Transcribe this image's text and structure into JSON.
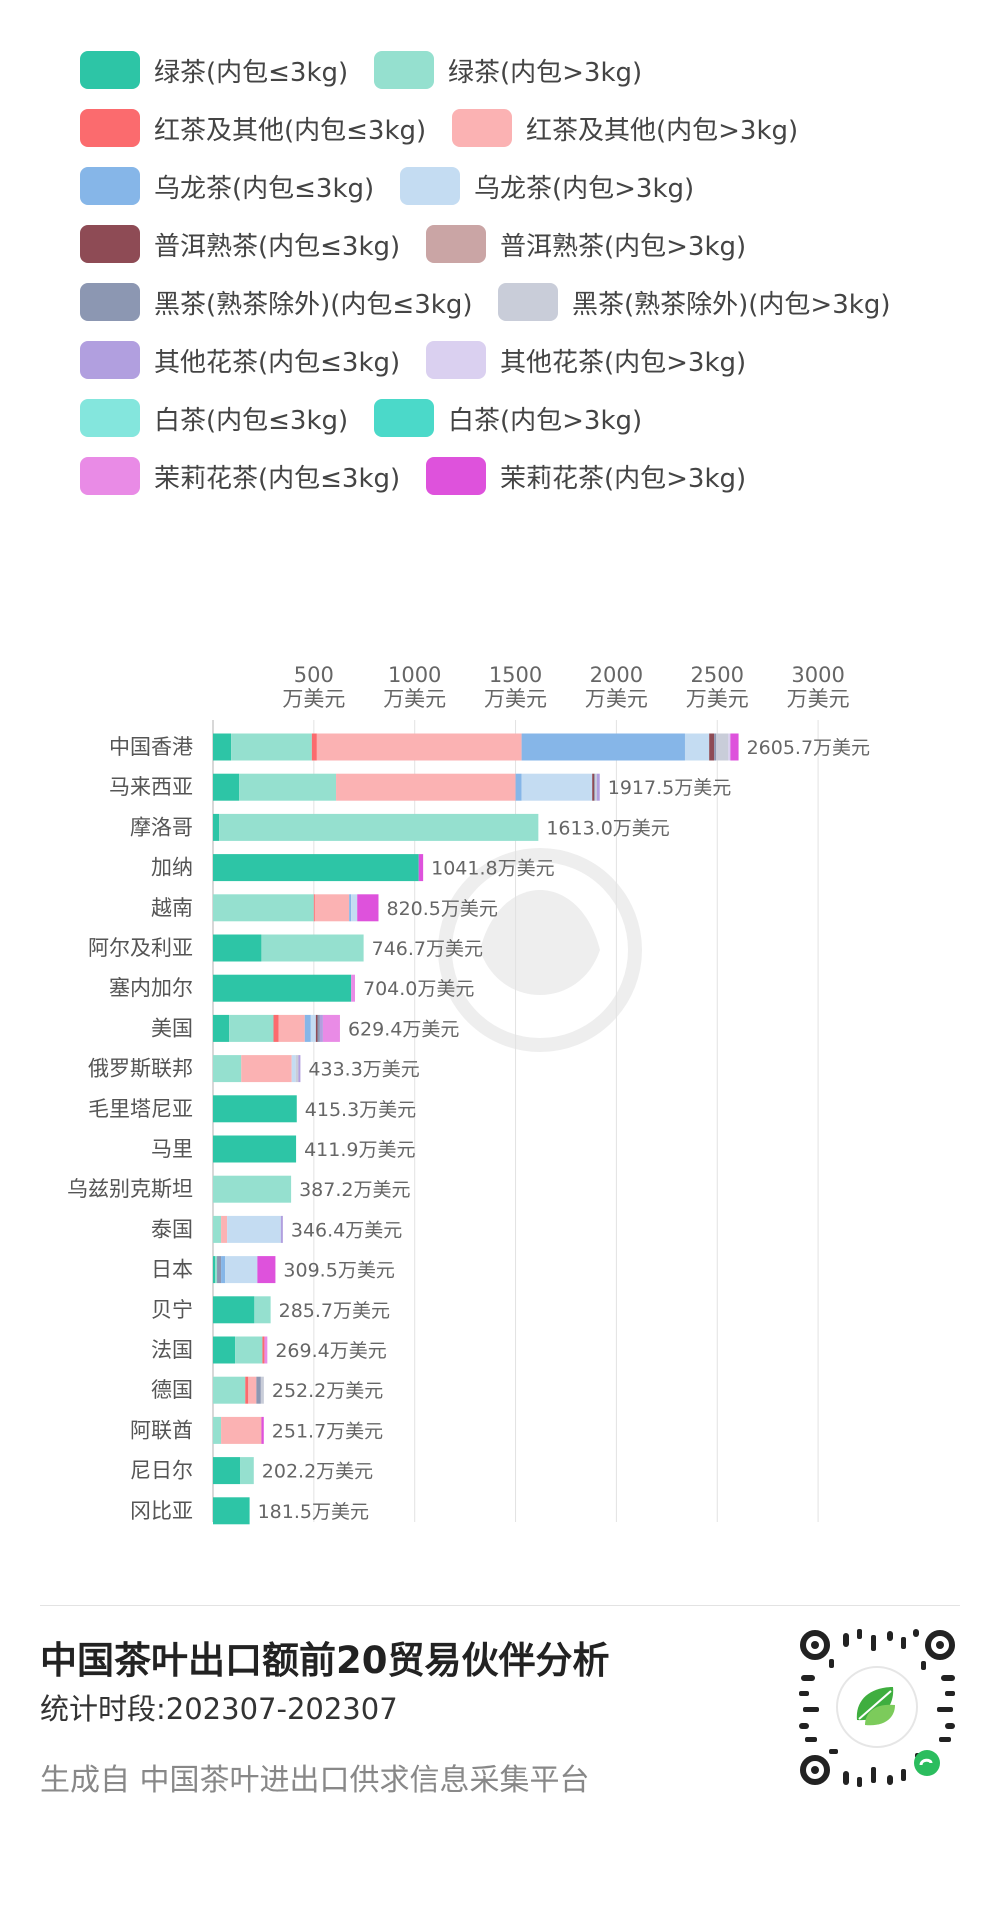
{
  "chart_data": {
    "type": "bar",
    "orientation": "horizontal",
    "stacked": true,
    "x_ticks": [
      {
        "value": 500,
        "label": [
          "500",
          "万美元"
        ]
      },
      {
        "value": 1000,
        "label": [
          "1000",
          "万美元"
        ]
      },
      {
        "value": 1500,
        "label": [
          "1500",
          "万美元"
        ]
      },
      {
        "value": 2000,
        "label": [
          "2000",
          "万美元"
        ]
      },
      {
        "value": 2500,
        "label": [
          "2500",
          "万美元"
        ]
      },
      {
        "value": 3000,
        "label": [
          "3000",
          "万美元"
        ]
      }
    ],
    "xlim": [
      0,
      3000
    ],
    "grid": true,
    "legend_position": "top",
    "series": [
      {
        "name": "绿茶(内包≤3kg)",
        "color": "#2dc5a6"
      },
      {
        "name": "绿茶(内包>3kg)",
        "color": "#95e0cf"
      },
      {
        "name": "红茶及其他(内包≤3kg)",
        "color": "#fb6b6e"
      },
      {
        "name": "红茶及其他(内包>3kg)",
        "color": "#fbb2b3"
      },
      {
        "name": "乌龙茶(内包≤3kg)",
        "color": "#86b6e8"
      },
      {
        "name": "乌龙茶(内包>3kg)",
        "color": "#c4dcf2"
      },
      {
        "name": "普洱熟茶(内包≤3kg)",
        "color": "#8e4b55"
      },
      {
        "name": "普洱熟茶(内包>3kg)",
        "color": "#caa5a5"
      },
      {
        "name": "黑茶(熟茶除外)(内包≤3kg)",
        "color": "#8c97b2"
      },
      {
        "name": "黑茶(熟茶除外)(内包>3kg)",
        "color": "#c9cdd9"
      },
      {
        "name": "其他花茶(内包≤3kg)",
        "color": "#b19fdf"
      },
      {
        "name": "其他花茶(内包>3kg)",
        "color": "#dad0f0"
      },
      {
        "name": "白茶(内包≤3kg)",
        "color": "#84e6dd"
      },
      {
        "name": "白茶(内包>3kg)",
        "color": "#4bd9c9"
      },
      {
        "name": "茉莉花茶(内包≤3kg)",
        "color": "#e98be6"
      },
      {
        "name": "茉莉花茶(内包>3kg)",
        "color": "#de52dc"
      }
    ],
    "categories": [
      {
        "name": "中国香港",
        "total": 2605.7,
        "total_label": "2605.7万美元",
        "segments": [
          [
            0,
            90
          ],
          [
            1,
            400
          ],
          [
            2,
            25
          ],
          [
            3,
            1015
          ],
          [
            4,
            810
          ],
          [
            5,
            120
          ],
          [
            6,
            25
          ],
          [
            8,
            10
          ],
          [
            9,
            60
          ],
          [
            11,
            10
          ],
          [
            15,
            40.7
          ]
        ]
      },
      {
        "name": "马来西亚",
        "total": 1917.5,
        "total_label": "1917.5万美元",
        "segments": [
          [
            0,
            130
          ],
          [
            1,
            480
          ],
          [
            3,
            890
          ],
          [
            4,
            30
          ],
          [
            5,
            350
          ],
          [
            6,
            10
          ],
          [
            8,
            5
          ],
          [
            9,
            7.5
          ],
          [
            10,
            15
          ]
        ]
      },
      {
        "name": "摩洛哥",
        "total": 1613.0,
        "total_label": "1613.0万美元",
        "segments": [
          [
            0,
            30
          ],
          [
            1,
            1583
          ]
        ]
      },
      {
        "name": "加纳",
        "total": 1041.8,
        "total_label": "1041.8万美元",
        "segments": [
          [
            0,
            1020
          ],
          [
            15,
            21.8
          ]
        ]
      },
      {
        "name": "越南",
        "total": 820.5,
        "total_label": "820.5万美元",
        "segments": [
          [
            1,
            500
          ],
          [
            2,
            5
          ],
          [
            3,
            170
          ],
          [
            4,
            10
          ],
          [
            5,
            30
          ],
          [
            15,
            105.5
          ]
        ]
      },
      {
        "name": "阿尔及利亚",
        "total": 746.7,
        "total_label": "746.7万美元",
        "segments": [
          [
            0,
            240
          ],
          [
            1,
            506.7
          ]
        ]
      },
      {
        "name": "塞内加尔",
        "total": 704.0,
        "total_label": "704.0万美元",
        "segments": [
          [
            0,
            685
          ],
          [
            14,
            19
          ]
        ]
      },
      {
        "name": "美国",
        "total": 629.4,
        "total_label": "629.4万美元",
        "segments": [
          [
            0,
            80
          ],
          [
            1,
            220
          ],
          [
            2,
            25
          ],
          [
            3,
            130
          ],
          [
            4,
            30
          ],
          [
            5,
            25
          ],
          [
            6,
            8
          ],
          [
            8,
            12
          ],
          [
            10,
            15
          ],
          [
            14,
            84.4
          ]
        ]
      },
      {
        "name": "俄罗斯联邦",
        "total": 433.3,
        "total_label": "433.3万美元",
        "segments": [
          [
            1,
            140
          ],
          [
            3,
            250
          ],
          [
            5,
            20
          ],
          [
            9,
            13.3
          ],
          [
            10,
            10
          ]
        ]
      },
      {
        "name": "毛里塔尼亚",
        "total": 415.3,
        "total_label": "415.3万美元",
        "segments": [
          [
            0,
            415.3
          ]
        ]
      },
      {
        "name": "马里",
        "total": 411.9,
        "total_label": "411.9万美元",
        "segments": [
          [
            0,
            411.9
          ]
        ]
      },
      {
        "name": "乌兹别克斯坦",
        "total": 387.2,
        "total_label": "387.2万美元",
        "segments": [
          [
            1,
            387.2
          ]
        ]
      },
      {
        "name": "泰国",
        "total": 346.4,
        "total_label": "346.4万美元",
        "segments": [
          [
            1,
            40
          ],
          [
            3,
            30
          ],
          [
            5,
            266.4
          ],
          [
            10,
            10
          ]
        ]
      },
      {
        "name": "日本",
        "total": 309.5,
        "total_label": "309.5万美元",
        "segments": [
          [
            0,
            10
          ],
          [
            1,
            10
          ],
          [
            8,
            20
          ],
          [
            4,
            20
          ],
          [
            5,
            160
          ],
          [
            15,
            89.5
          ]
        ]
      },
      {
        "name": "贝宁",
        "total": 285.7,
        "total_label": "285.7万美元",
        "segments": [
          [
            0,
            205
          ],
          [
            1,
            80.7
          ]
        ]
      },
      {
        "name": "法国",
        "total": 269.4,
        "total_label": "269.4万美元",
        "segments": [
          [
            0,
            110
          ],
          [
            1,
            135
          ],
          [
            2,
            10
          ],
          [
            14,
            14.4
          ]
        ]
      },
      {
        "name": "德国",
        "total": 252.2,
        "total_label": "252.2万美元",
        "segments": [
          [
            1,
            160
          ],
          [
            2,
            15
          ],
          [
            3,
            40
          ],
          [
            8,
            22.2
          ],
          [
            9,
            15
          ]
        ]
      },
      {
        "name": "阿联酋",
        "total": 251.7,
        "total_label": "251.7万美元",
        "segments": [
          [
            1,
            40
          ],
          [
            3,
            200
          ],
          [
            15,
            11.7
          ]
        ]
      },
      {
        "name": "尼日尔",
        "total": 202.2,
        "total_label": "202.2万美元",
        "segments": [
          [
            0,
            135
          ],
          [
            1,
            67.2
          ]
        ]
      },
      {
        "name": "冈比亚",
        "total": 181.5,
        "total_label": "181.5万美元",
        "segments": [
          [
            0,
            181.5
          ]
        ]
      }
    ]
  },
  "footer": {
    "title": "中国茶叶出口额前20贸易伙伴分析",
    "period": "统计时段:202307-202307",
    "source": "生成自 中国茶叶进出口供求信息采集平台"
  }
}
